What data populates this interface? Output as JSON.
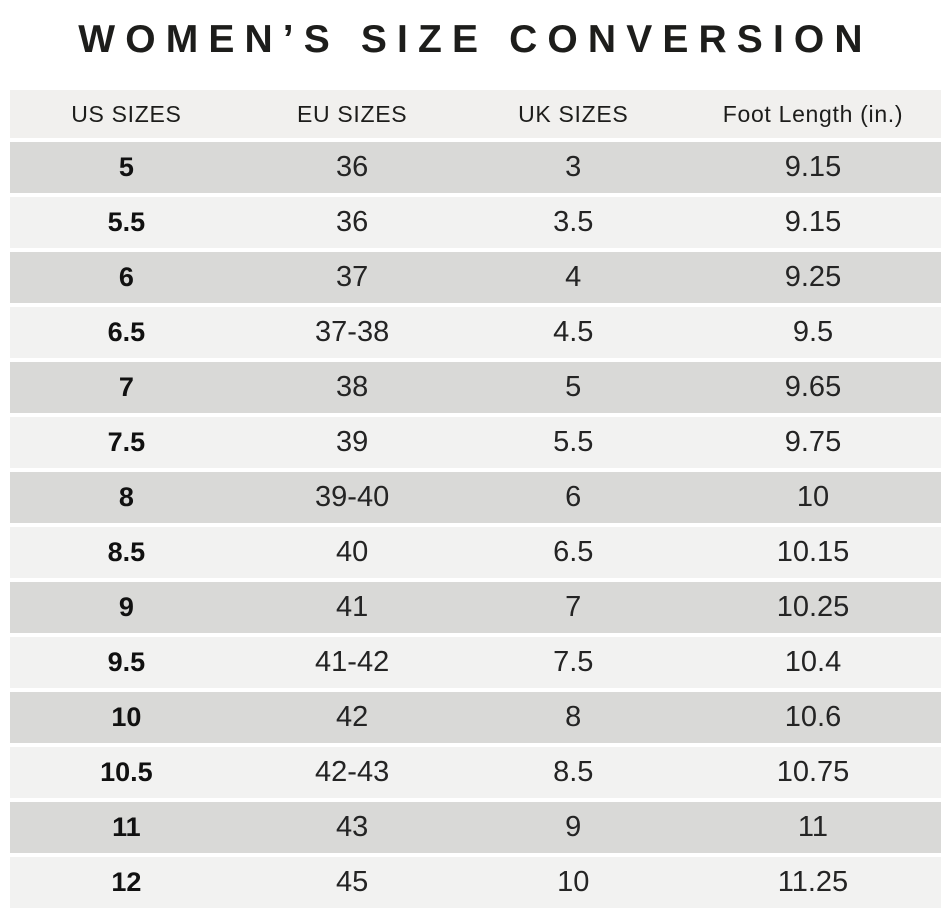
{
  "chart_data": {
    "type": "table",
    "title": "WOMEN’S SIZE CONVERSION",
    "columns": [
      "US SIZES",
      "EU SIZES",
      "UK SIZES",
      "Foot Length (in.)"
    ],
    "rows": [
      [
        "5",
        "36",
        "3",
        "9.15"
      ],
      [
        "5.5",
        "36",
        "3.5",
        "9.15"
      ],
      [
        "6",
        "37",
        "4",
        "9.25"
      ],
      [
        "6.5",
        "37-38",
        "4.5",
        "9.5"
      ],
      [
        "7",
        "38",
        "5",
        "9.65"
      ],
      [
        "7.5",
        "39",
        "5.5",
        "9.75"
      ],
      [
        "8",
        "39-40",
        "6",
        "10"
      ],
      [
        "8.5",
        "40",
        "6.5",
        "10.15"
      ],
      [
        "9",
        "41",
        "7",
        "10.25"
      ],
      [
        "9.5",
        "41-42",
        "7.5",
        "10.4"
      ],
      [
        "10",
        "42",
        "8",
        "10.6"
      ],
      [
        "10.5",
        "42-43",
        "8.5",
        "10.75"
      ],
      [
        "11",
        "43",
        "9",
        "11"
      ],
      [
        "12",
        "45",
        "10",
        "11.25"
      ]
    ],
    "layout": {
      "row_striping": "alternating, first data row dark",
      "header_position": "top",
      "grid": "off",
      "legend": "none"
    }
  },
  "colors": {
    "background": "#ffffff",
    "header_row_bg": "#f1f0ee",
    "row_dark_bg": "#d9d9d7",
    "row_light_bg": "#f2f2f1",
    "title_text": "#1d1d1b",
    "cell_text": "#242424"
  }
}
